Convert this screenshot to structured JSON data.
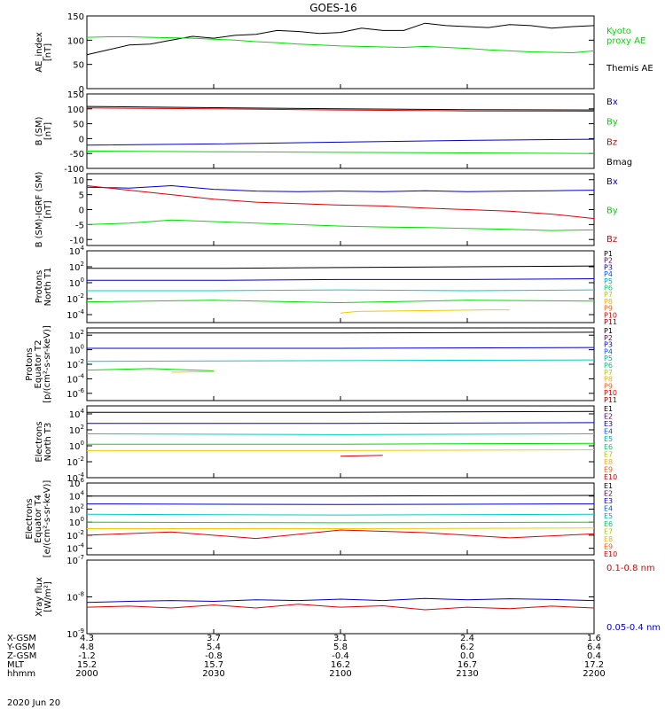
{
  "title": "GOES-16",
  "date_label": "2020 Jun 20",
  "colors": {
    "black": "#000000",
    "green": "#00dd00",
    "red": "#dd0000",
    "blue": "#0000cc"
  },
  "chart_data": [
    {
      "type": "line",
      "panel": "ae_index",
      "ylabel": [
        "AE_index",
        "[nT]"
      ],
      "ylim": [
        0,
        150
      ],
      "yticks": [
        "0",
        "50",
        "100",
        "150"
      ],
      "legend": [
        {
          "text": "Kyoto",
          "color": "#00dd00"
        },
        {
          "text": "proxy AE",
          "color": "#00dd00"
        },
        {
          "text": "Themis AE",
          "color": "#000000"
        }
      ],
      "series": [
        {
          "name": "Themis AE",
          "color": "#000000",
          "x": [
            0,
            5,
            10,
            15,
            20,
            25,
            30,
            35,
            40,
            45,
            50,
            55,
            60,
            65,
            70,
            75,
            80,
            85,
            90,
            95,
            100,
            105,
            110,
            115,
            120
          ],
          "values": [
            70,
            80,
            90,
            92,
            100,
            108,
            104,
            110,
            112,
            120,
            118,
            114,
            116,
            125,
            120,
            120,
            135,
            130,
            128,
            126,
            132,
            130,
            125,
            128,
            130
          ]
        },
        {
          "name": "Kyoto proxy AE",
          "color": "#00dd00",
          "x": [
            0,
            5,
            10,
            15,
            20,
            25,
            30,
            35,
            40,
            45,
            50,
            55,
            60,
            65,
            70,
            75,
            80,
            85,
            90,
            95,
            100,
            105,
            110,
            115,
            120
          ],
          "values": [
            106,
            107,
            107,
            106,
            105,
            104,
            102,
            100,
            97,
            95,
            92,
            90,
            88,
            87,
            86,
            85,
            87,
            85,
            83,
            80,
            78,
            76,
            75,
            74,
            78
          ]
        }
      ]
    },
    {
      "type": "line",
      "panel": "b_sm",
      "ylabel": [
        "B (SM)",
        "[nT]"
      ],
      "ylim": [
        -100,
        150
      ],
      "yticks": [
        "-100",
        "-50",
        "0",
        "50",
        "100",
        "150"
      ],
      "legend": [
        {
          "text": "Bx",
          "color": "#0000cc"
        },
        {
          "text": "By",
          "color": "#00dd00"
        },
        {
          "text": "Bz",
          "color": "#dd0000"
        },
        {
          "text": "Bmag",
          "color": "#000000"
        }
      ],
      "series": [
        {
          "name": "Bmag",
          "color": "#000000",
          "x": [
            0,
            30,
            60,
            90,
            120
          ],
          "values": [
            108,
            104,
            100,
            97,
            96
          ]
        },
        {
          "name": "Bz",
          "color": "#dd0000",
          "x": [
            0,
            30,
            60,
            90,
            120
          ],
          "values": [
            103,
            100,
            96,
            93,
            92
          ]
        },
        {
          "name": "Bx",
          "color": "#0000cc",
          "x": [
            0,
            30,
            60,
            90,
            120
          ],
          "values": [
            -22,
            -18,
            -12,
            -6,
            -2
          ]
        },
        {
          "name": "By",
          "color": "#00dd00",
          "x": [
            0,
            30,
            60,
            90,
            120
          ],
          "values": [
            -42,
            -44,
            -46,
            -48,
            -50
          ]
        }
      ]
    },
    {
      "type": "line",
      "panel": "b_minus_igrf",
      "ylabel": [
        "B (SM)-IGRF (SM)",
        "[nT]"
      ],
      "ylim": [
        -12,
        12
      ],
      "yticks": [
        "-10",
        "-5",
        "0",
        "5",
        "10"
      ],
      "legend": [
        {
          "text": "Bx",
          "color": "#0000cc"
        },
        {
          "text": "By",
          "color": "#00dd00"
        },
        {
          "text": "Bz",
          "color": "#dd0000"
        }
      ],
      "series": [
        {
          "name": "Bx",
          "color": "#0000cc",
          "x": [
            0,
            10,
            20,
            30,
            40,
            50,
            60,
            70,
            80,
            90,
            100,
            110,
            120
          ],
          "values": [
            7.5,
            7.2,
            8.0,
            6.8,
            6.2,
            6.0,
            6.2,
            6.0,
            6.3,
            6.0,
            6.2,
            6.3,
            6.5
          ]
        },
        {
          "name": "Bz",
          "color": "#dd0000",
          "x": [
            0,
            10,
            20,
            30,
            40,
            50,
            60,
            70,
            80,
            90,
            100,
            110,
            120
          ],
          "values": [
            8.0,
            6.5,
            5.0,
            3.5,
            2.5,
            2.0,
            1.5,
            1.2,
            0.5,
            0.0,
            -0.5,
            -1.5,
            -3.0
          ]
        },
        {
          "name": "By",
          "color": "#00dd00",
          "x": [
            0,
            10,
            20,
            30,
            40,
            50,
            60,
            70,
            80,
            90,
            100,
            110,
            120
          ],
          "values": [
            -5.0,
            -4.5,
            -3.5,
            -4.0,
            -4.5,
            -5.0,
            -5.5,
            -5.8,
            -6.0,
            -6.3,
            -6.6,
            -7.0,
            -6.8
          ]
        }
      ]
    },
    {
      "type": "line",
      "panel": "protons_north_t1",
      "ylabel": [
        "Protons",
        "North T1"
      ],
      "yscale": "log",
      "ylim": [
        -5,
        4
      ],
      "yticks": [
        "10^-4",
        "10^-2",
        "10^0",
        "10^2",
        "10^4"
      ],
      "channel_labels": [
        "P1",
        "P2",
        "P3",
        "P4",
        "P5",
        "P6",
        "P7",
        "P8",
        "P9",
        "P10",
        "P11"
      ],
      "series": [
        {
          "name": "P1",
          "color": "#000000",
          "x": [
            0,
            30,
            60,
            90,
            120
          ],
          "values": [
            1.8,
            1.8,
            1.9,
            2.0,
            2.1
          ]
        },
        {
          "name": "P3",
          "color": "#0000cc",
          "x": [
            0,
            30,
            60,
            90,
            120
          ],
          "values": [
            0.3,
            0.3,
            0.4,
            0.4,
            0.5
          ]
        },
        {
          "name": "P5",
          "color": "#00cccc",
          "x": [
            0,
            30,
            60,
            90,
            120
          ],
          "values": [
            -1.0,
            -1.0,
            -0.9,
            -1.0,
            -0.9
          ]
        },
        {
          "name": "P6",
          "color": "#00dd00",
          "x": [
            0,
            30,
            60,
            90,
            120
          ],
          "values": [
            -2.4,
            -2.2,
            -2.5,
            -2.2,
            -2.3
          ]
        },
        {
          "name": "P8",
          "color": "#eecc00",
          "x": [
            60,
            64,
            95,
            100
          ],
          "values": [
            -3.8,
            -3.6,
            -3.4,
            -3.4
          ]
        }
      ]
    },
    {
      "type": "line",
      "panel": "protons_equator_t2",
      "ylabel": [
        "Protons",
        "Equator T2",
        "[p/(cm²-s-sr-keV)]"
      ],
      "yscale": "log",
      "ylim": [
        -7,
        3
      ],
      "yticks": [
        "10^-6",
        "10^-4",
        "10^-2",
        "10^0",
        "10^2"
      ],
      "channel_labels": [
        "P1",
        "P2",
        "P3",
        "P4",
        "P5",
        "P6",
        "P7",
        "P8",
        "P9",
        "P10",
        "P11"
      ],
      "series": [
        {
          "name": "P1",
          "color": "#000000",
          "x": [
            0,
            60,
            120
          ],
          "values": [
            2.3,
            2.3,
            2.4
          ]
        },
        {
          "name": "P3",
          "color": "#0000cc",
          "x": [
            0,
            60,
            120
          ],
          "values": [
            0.2,
            0.2,
            0.3
          ]
        },
        {
          "name": "P5",
          "color": "#00cccc",
          "x": [
            0,
            60,
            120
          ],
          "values": [
            -1.6,
            -1.5,
            -1.4
          ]
        },
        {
          "name": "P6",
          "color": "#00dd00",
          "x": [
            0,
            15,
            30
          ],
          "values": [
            -2.8,
            -2.6,
            -2.9
          ]
        },
        {
          "name": "P8",
          "color": "#eecc00",
          "x": [
            20,
            30
          ],
          "values": [
            -3.1,
            -3.0
          ]
        }
      ]
    },
    {
      "type": "line",
      "panel": "electrons_north_t3",
      "ylabel": [
        "Electrons",
        "North T3"
      ],
      "yscale": "log",
      "ylim": [
        -4,
        5
      ],
      "yticks": [
        "10^-4",
        "10^-2",
        "10^0",
        "10^2",
        "10^4"
      ],
      "channel_labels": [
        "E1",
        "E2",
        "E3",
        "E4",
        "E5",
        "E6",
        "E7",
        "E8",
        "E9",
        "E10"
      ],
      "series": [
        {
          "name": "E1",
          "color": "#000000",
          "x": [
            0,
            60,
            120
          ],
          "values": [
            4.2,
            4.2,
            4.3
          ]
        },
        {
          "name": "E3",
          "color": "#0000cc",
          "x": [
            0,
            60,
            120
          ],
          "values": [
            2.8,
            2.8,
            2.9
          ]
        },
        {
          "name": "E5",
          "color": "#00cccc",
          "x": [
            0,
            60,
            120
          ],
          "values": [
            1.5,
            1.4,
            1.5
          ]
        },
        {
          "name": "E6",
          "color": "#00dd00",
          "x": [
            0,
            60,
            120
          ],
          "values": [
            0.2,
            0.2,
            0.3
          ]
        },
        {
          "name": "E8",
          "color": "#eecc00",
          "x": [
            0,
            60,
            120
          ],
          "values": [
            -0.6,
            -0.6,
            -0.5
          ]
        },
        {
          "name": "E10",
          "color": "#dd0000",
          "x": [
            60,
            70
          ],
          "values": [
            -1.3,
            -1.2
          ]
        }
      ]
    },
    {
      "type": "line",
      "panel": "electrons_equator_t4",
      "ylabel": [
        "Electrons",
        "Equator T4",
        "[e/(cm²-s-sr-keV)]"
      ],
      "yscale": "log",
      "ylim": [
        -5,
        6
      ],
      "yticks": [
        "10^-4",
        "10^-2",
        "10^0",
        "10^2",
        "10^4",
        "10^6"
      ],
      "channel_labels": [
        "E1",
        "E2",
        "E3",
        "E4",
        "E5",
        "E6",
        "E7",
        "E8",
        "E9",
        "E10"
      ],
      "series": [
        {
          "name": "E1",
          "color": "#000000",
          "x": [
            0,
            60,
            120
          ],
          "values": [
            4.0,
            4.0,
            4.1
          ]
        },
        {
          "name": "E3",
          "color": "#0000cc",
          "x": [
            0,
            60,
            120
          ],
          "values": [
            2.8,
            2.7,
            2.8
          ]
        },
        {
          "name": "E5",
          "color": "#00cccc",
          "x": [
            0,
            60,
            120
          ],
          "values": [
            1.2,
            1.1,
            1.2
          ]
        },
        {
          "name": "E6",
          "color": "#00dd00",
          "x": [
            0,
            60,
            120
          ],
          "values": [
            0.0,
            -0.1,
            0.0
          ]
        },
        {
          "name": "E8",
          "color": "#eecc00",
          "x": [
            0,
            60,
            120
          ],
          "values": [
            -1.0,
            -1.0,
            -0.9
          ]
        },
        {
          "name": "E10",
          "color": "#dd0000",
          "x": [
            0,
            20,
            40,
            60,
            80,
            100,
            120
          ],
          "values": [
            -2.0,
            -1.5,
            -2.5,
            -1.2,
            -1.6,
            -2.4,
            -1.8
          ]
        }
      ]
    },
    {
      "type": "line",
      "panel": "xray_flux",
      "ylabel": [
        "Xray flux",
        "[W/m²]"
      ],
      "yscale": "log",
      "ylim": [
        -9,
        -7
      ],
      "yticks": [
        "10^-9",
        "10^-8",
        "10^-7"
      ],
      "legend": [
        {
          "text": "0.1-0.8 nm",
          "color": "#dd0000"
        },
        {
          "text": "0.05-0.4 nm",
          "color": "#0000cc"
        }
      ],
      "series": [
        {
          "name": "0.1-0.8 nm",
          "color": "#dd0000",
          "x": [
            0,
            10,
            20,
            30,
            40,
            50,
            60,
            70,
            80,
            90,
            100,
            110,
            120
          ],
          "values": [
            -8.28,
            -8.25,
            -8.3,
            -8.22,
            -8.3,
            -8.2,
            -8.28,
            -8.24,
            -8.35,
            -8.28,
            -8.32,
            -8.25,
            -8.3
          ]
        },
        {
          "name": "0.05-0.4 nm",
          "color": "#0000cc",
          "x": [
            0,
            10,
            20,
            30,
            40,
            50,
            60,
            70,
            80,
            90,
            100,
            110,
            120
          ],
          "values": [
            -8.15,
            -8.12,
            -8.1,
            -8.12,
            -8.08,
            -8.1,
            -8.06,
            -8.1,
            -8.04,
            -8.08,
            -8.05,
            -8.07,
            -8.1
          ]
        }
      ]
    }
  ],
  "x_axis": {
    "row_labels": [
      "X-GSM",
      "Y-GSM",
      "Z-GSM",
      "MLT",
      "hhmm"
    ],
    "ticks": [
      {
        "x": 0,
        "values": [
          "4.3",
          "4.8",
          "-1.2",
          "15.2",
          "2000"
        ]
      },
      {
        "x": 30,
        "values": [
          "3.7",
          "5.4",
          "-0.8",
          "15.7",
          "2030"
        ]
      },
      {
        "x": 60,
        "values": [
          "3.1",
          "5.8",
          "-0.4",
          "16.2",
          "2100"
        ]
      },
      {
        "x": 90,
        "values": [
          "2.4",
          "6.2",
          "0.0",
          "16.7",
          "2130"
        ]
      },
      {
        "x": 120,
        "values": [
          "1.6",
          "6.4",
          "0.4",
          "17.2",
          "2200"
        ]
      }
    ]
  }
}
